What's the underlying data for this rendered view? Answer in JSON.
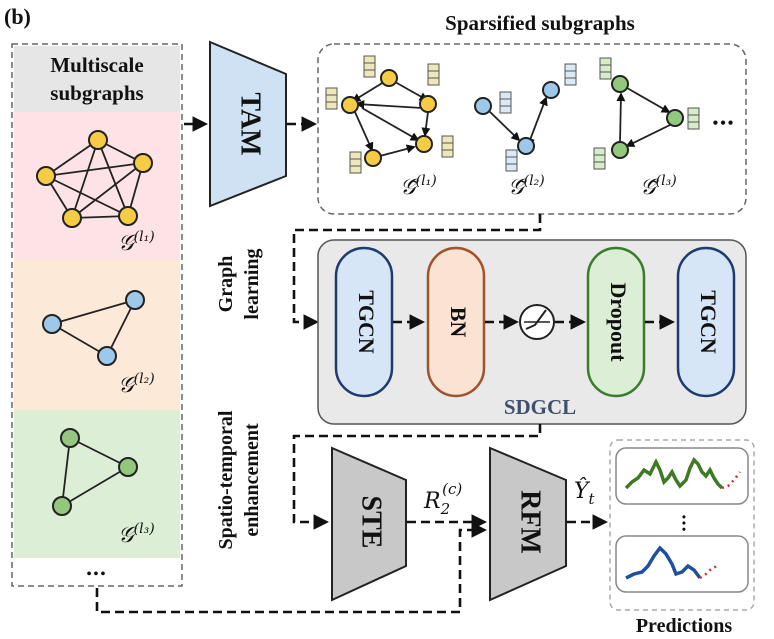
{
  "panel_label": "(b)",
  "multiscale": {
    "title_line1": "Multiscale",
    "title_line2": "subgraphs",
    "labels": [
      "𝒢",
      "(l₁)",
      "𝒢",
      "(l₂)",
      "𝒢",
      "(l₃)"
    ],
    "ellipsis": "•••"
  },
  "tam": {
    "label": "TAM"
  },
  "sparsified": {
    "title": "Sparsified subgraphs",
    "ellipsis": "•••",
    "labels": [
      "𝒢̃",
      "(l₁)",
      "𝒢̃",
      "(l₂)",
      "𝒢̃",
      "(l₃)"
    ]
  },
  "graph_learning": {
    "line1": "Graph",
    "line2": "learning"
  },
  "sdgcl": {
    "label": "SDGCL",
    "blocks": [
      "TGCN",
      "BN",
      "Dropout",
      "TGCN"
    ],
    "activation": "∕"
  },
  "st_enhancement": {
    "line1": "Spatio-temporal",
    "line2": "enhancement"
  },
  "ste": {
    "label": "STE"
  },
  "rfm": {
    "label": "RFM"
  },
  "r2c": {
    "base": "R",
    "sub": "2",
    "sup": "(c)"
  },
  "yhat": {
    "base": "Ŷ",
    "sub": "t"
  },
  "predictions": {
    "title": "Predictions",
    "ellipsis": "•••"
  },
  "colors": {
    "pink": "#fde3e6",
    "peach": "#fde9d8",
    "green_bg": "#dcefd6",
    "tam_fill": "#cfe2f3",
    "tgcn_fill": "#d6e6f7",
    "bn_fill": "#fbe3d4",
    "dropout_fill": "#dcefd6",
    "gray_block": "#c8c8c8",
    "sdgcl_text": "#3f4f6e"
  }
}
